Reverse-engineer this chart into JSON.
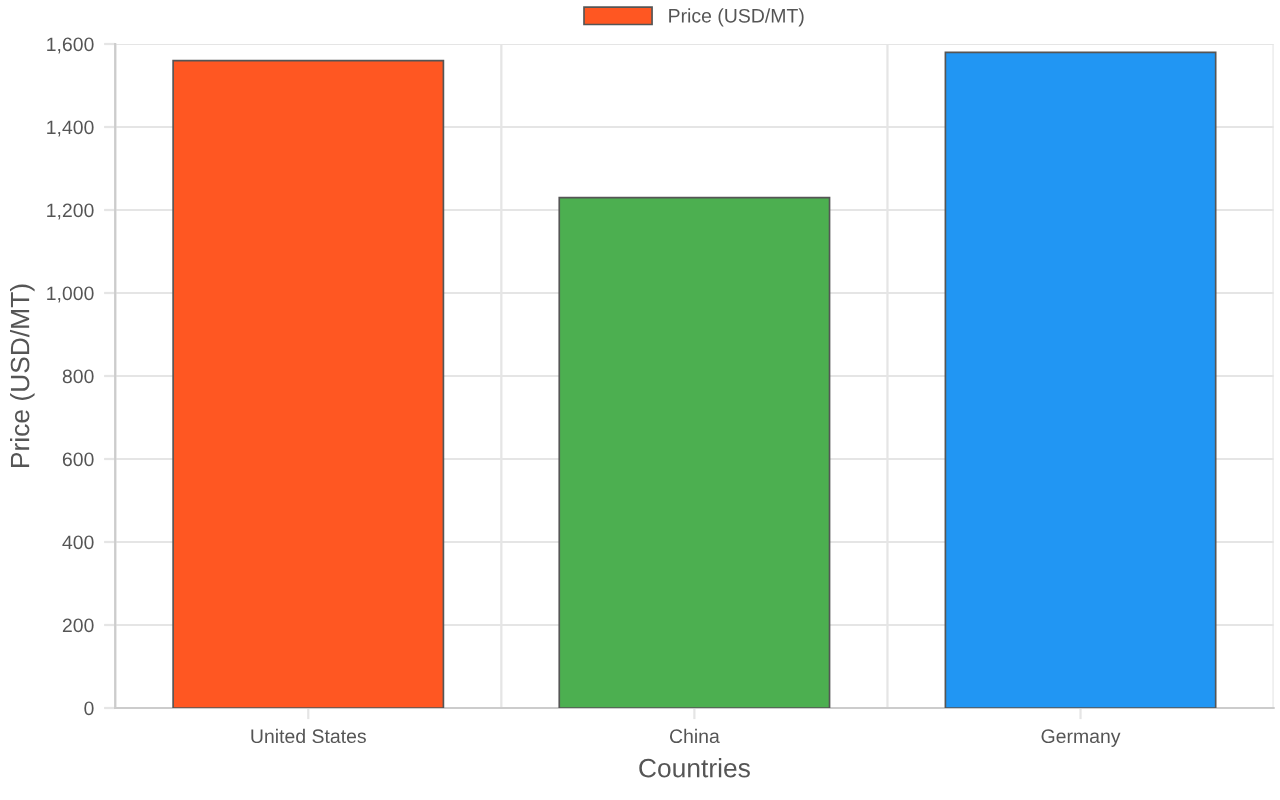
{
  "chart_data": {
    "type": "bar",
    "categories": [
      "United States",
      "China",
      "Germany"
    ],
    "series": [
      {
        "name": "Price (USD/MT)",
        "colors": [
          "#ff5722",
          "#4caf50",
          "#2196f3"
        ],
        "values": [
          1560,
          1230,
          1580
        ]
      }
    ],
    "xlabel": "Countries",
    "ylabel": "Price (USD/MT)",
    "ylim": [
      0,
      1600
    ],
    "yticks": [
      0,
      200,
      400,
      600,
      800,
      {
        "value": 1000,
        "label": "1,000"
      },
      {
        "value": 1200,
        "label": "1,200"
      },
      {
        "value": 1400,
        "label": "1,400"
      },
      {
        "value": 1600,
        "label": "1,600"
      }
    ],
    "grid": true,
    "legend": "top"
  }
}
